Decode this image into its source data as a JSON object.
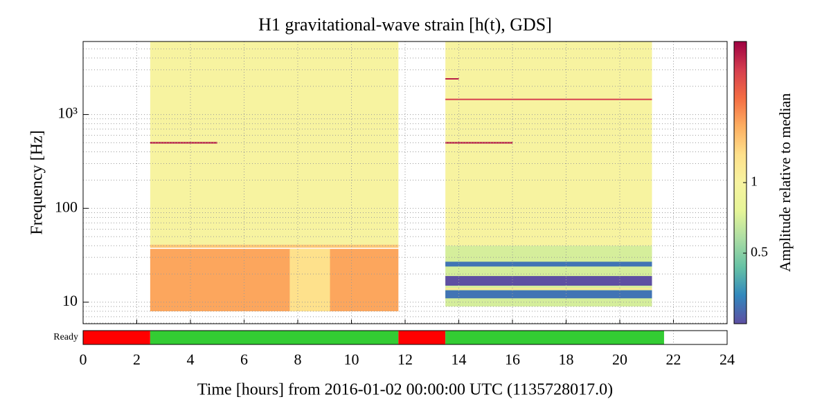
{
  "chart_data": {
    "type": "spectrogram",
    "title": "H1 gravitational-wave strain [h(t), GDS]",
    "xlabel": "Time [hours] from 2016-01-02 00:00:00 UTC (1135728017.0)",
    "ylabel": "Frequency [Hz]",
    "xlim": [
      0,
      24
    ],
    "xticks": [
      0,
      2,
      4,
      6,
      8,
      10,
      12,
      14,
      16,
      18,
      20,
      22,
      24
    ],
    "ylim": [
      5.9,
      6000
    ],
    "yscale": "log",
    "yticks": [
      10,
      100,
      {
        "value": 1000,
        "label": "10³"
      }
    ],
    "grid": true,
    "colorbar": {
      "label": "Amplitude relative to median",
      "clim": [
        0.25,
        4
      ],
      "scale": "log",
      "ticks": [
        0.5,
        1
      ],
      "cmap": [
        "#5e4fa2",
        "#3288bd",
        "#66c2a5",
        "#abdda4",
        "#e6f598",
        "#f7f3a0",
        "#fee08b",
        "#fdae61",
        "#f46d43",
        "#d53e4f",
        "#9e0142"
      ]
    },
    "tiles": [
      {
        "t0": 2.5,
        "t1": 11.75,
        "f0": 40,
        "f1": 6000,
        "amplitude": 1
      },
      {
        "t0": 2.5,
        "t1": 11.75,
        "f0": 8,
        "f1": 37,
        "amplitude": 1.8
      },
      {
        "t0": 7.7,
        "t1": 9.2,
        "f0": 8,
        "f1": 37,
        "amplitude": 1.3
      },
      {
        "t0": 2.5,
        "t1": 11.75,
        "f0": 38,
        "f1": 41,
        "amplitude": 1.5
      },
      {
        "t0": 2.5,
        "t1": 5,
        "f0": 490,
        "f1": 510,
        "amplitude": 3.5
      },
      {
        "t0": 13.5,
        "t1": 21.2,
        "f0": 40,
        "f1": 6000,
        "amplitude": 1
      },
      {
        "t0": 13.5,
        "t1": 21.2,
        "f0": 9,
        "f1": 40,
        "amplitude": 0.7
      },
      {
        "t0": 13.5,
        "t1": 21.2,
        "f0": 24,
        "f1": 27,
        "amplitude": 0.3
      },
      {
        "t0": 13.5,
        "t1": 21.2,
        "f0": 15,
        "f1": 19,
        "amplitude": 0.25
      },
      {
        "t0": 13.5,
        "t1": 21.2,
        "f0": 13.6,
        "f1": 14.2,
        "amplitude": 1.2
      },
      {
        "t0": 13.5,
        "t1": 21.2,
        "f0": 11,
        "f1": 13.4,
        "amplitude": 0.3
      },
      {
        "t0": 13.5,
        "t1": 21.2,
        "f0": 1430,
        "f1": 1470,
        "amplitude": 3
      },
      {
        "t0": 13.5,
        "t1": 14,
        "f0": 2370,
        "f1": 2430,
        "amplitude": 3.5
      },
      {
        "t0": 13.5,
        "t1": 16,
        "f0": 490,
        "f1": 510,
        "amplitude": 3.5
      }
    ],
    "state": {
      "label": "Ready",
      "segments": [
        {
          "start": 0,
          "end": 2.5,
          "color": "#ff0000"
        },
        {
          "start": 2.5,
          "end": 11.75,
          "color": "#33cc33"
        },
        {
          "start": 11.75,
          "end": 13.5,
          "color": "#ff0000"
        },
        {
          "start": 13.5,
          "end": 21.65,
          "color": "#33cc33"
        }
      ]
    }
  }
}
